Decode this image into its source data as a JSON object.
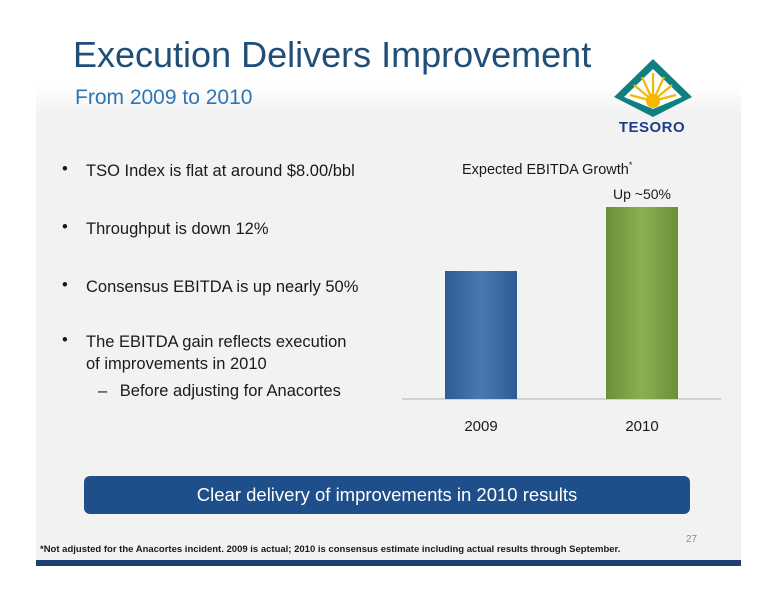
{
  "slide": {
    "title": "Execution Delivers Improvement",
    "subtitle": "From 2009 to 2010",
    "logo_text": "TESORO",
    "page_number": "27",
    "footnote": "*Not adjusted for the Anacortes incident.  2009 is actual; 2010 is consensus estimate including actual results through September.",
    "callout": "Clear delivery of improvements in 2010 results"
  },
  "bullets": [
    {
      "marker": "•",
      "text": "TSO Index is flat at around $8.00/bbl"
    },
    {
      "marker": "•",
      "text": "Throughput is down 12%"
    },
    {
      "marker": "•",
      "text": "Consensus EBITDA is up nearly 50%"
    },
    {
      "marker": "•",
      "text": "The EBITDA gain reflects execution",
      "continuation": "of improvements in 2010"
    }
  ],
  "sub_bullet": {
    "marker": "–",
    "text": "Before adjusting for Anacortes"
  },
  "colors": {
    "title": "#1f4e79",
    "subtitle": "#2e75b6",
    "bar_2009": "#3d6aa3",
    "bar_2010": "#7da044",
    "callout_bg": "#1f4f8a"
  },
  "chart_data": {
    "type": "bar",
    "title": "Expected EBITDA Growth",
    "title_marker": "*",
    "categories": [
      "2009",
      "2010"
    ],
    "values": [
      1.0,
      1.5
    ],
    "annotation": "Up ~50%",
    "annotation_category": "2010",
    "ylim": [
      0,
      1.5
    ],
    "grid": false,
    "legend": "none"
  }
}
